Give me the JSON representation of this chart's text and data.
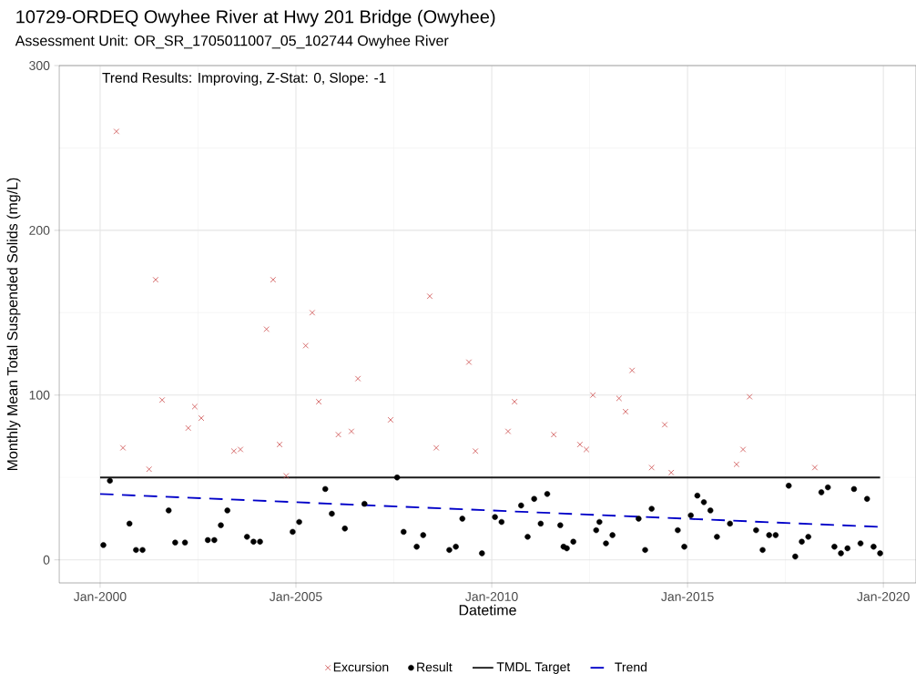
{
  "chart_data": {
    "type": "scatter",
    "title": "10729-ORDEQ Owyhee River at Hwy 201 Bridge (Owyhee)",
    "subtitle": "Assessment Unit: OR_SR_1705011007_05_102744 Owyhee River",
    "xlabel": "Datetime",
    "ylabel": "Monthly Mean Total Suspended Solids (mg/L)",
    "annotations": [
      "Trend Results: Improving, Z-Stat: 0, Slope: -1"
    ],
    "xlim": [
      "1998-12-15",
      "2020-11-01"
    ],
    "ylim": [
      -14,
      300
    ],
    "xticks": [
      {
        "value": "2000-01",
        "label": "Jan-2000"
      },
      {
        "value": "2005-01",
        "label": "Jan-2005"
      },
      {
        "value": "2010-01",
        "label": "Jan-2010"
      },
      {
        "value": "2015-01",
        "label": "Jan-2015"
      },
      {
        "value": "2020-01",
        "label": "Jan-2020"
      }
    ],
    "yticks": [
      0,
      100,
      200,
      300
    ],
    "grid": true,
    "legend": "bottom",
    "series": [
      {
        "name": "Excursion",
        "marker": "cross",
        "color": "#cd4b4b",
        "x": [
          "2000-06",
          "2000-08",
          "2001-04",
          "2001-06",
          "2001-08",
          "2002-04",
          "2002-06",
          "2002-08",
          "2003-06",
          "2003-08",
          "2004-04",
          "2004-06",
          "2004-08",
          "2004-10",
          "2005-04",
          "2005-06",
          "2005-08",
          "2006-02",
          "2006-06",
          "2006-08",
          "2007-06",
          "2008-06",
          "2008-08",
          "2009-06",
          "2009-08",
          "2010-06",
          "2010-08",
          "2011-08",
          "2012-04",
          "2012-06",
          "2012-08",
          "2013-04",
          "2013-06",
          "2013-08",
          "2014-02",
          "2014-06",
          "2014-08",
          "2016-04",
          "2016-06",
          "2016-08",
          "2018-04"
        ],
        "values": [
          260,
          68,
          55,
          170,
          97,
          80,
          93,
          86,
          66,
          67,
          140,
          170,
          70,
          51,
          130,
          150,
          96,
          76,
          78,
          110,
          85,
          160,
          68,
          120,
          66,
          78,
          96,
          76,
          70,
          67,
          100,
          98,
          90,
          115,
          56,
          82,
          53,
          58,
          67,
          99,
          56
        ]
      },
      {
        "name": "Result",
        "marker": "circle",
        "color": "#000000",
        "x": [
          "2000-02",
          "2000-04",
          "2000-10",
          "2000-12",
          "2001-02",
          "2001-10",
          "2001-12",
          "2002-03",
          "2002-10",
          "2002-12",
          "2003-02",
          "2003-04",
          "2003-10",
          "2003-12",
          "2004-02",
          "2004-12",
          "2005-02",
          "2005-10",
          "2005-12",
          "2006-04",
          "2006-10",
          "2007-08",
          "2007-10",
          "2008-02",
          "2008-04",
          "2008-12",
          "2009-02",
          "2009-04",
          "2009-10",
          "2010-02",
          "2010-04",
          "2010-10",
          "2010-12",
          "2011-02",
          "2011-04",
          "2011-06",
          "2011-10",
          "2011-11",
          "2011-12",
          "2012-02",
          "2012-09",
          "2012-10",
          "2012-12",
          "2013-02",
          "2013-10",
          "2013-12",
          "2014-02",
          "2014-10",
          "2014-12",
          "2015-02",
          "2015-04",
          "2015-06",
          "2015-08",
          "2015-10",
          "2016-02",
          "2016-10",
          "2016-12",
          "2017-02",
          "2017-04",
          "2017-08",
          "2017-10",
          "2017-12",
          "2018-02",
          "2018-06",
          "2018-08",
          "2018-10",
          "2018-12",
          "2019-02",
          "2019-04",
          "2019-06",
          "2019-08",
          "2019-10",
          "2019-12"
        ],
        "values": [
          9,
          48,
          22,
          6,
          6,
          30,
          10.5,
          10.5,
          12,
          12,
          21,
          30,
          14,
          11,
          11,
          17,
          23,
          43,
          28,
          19,
          34,
          50,
          17,
          8,
          15,
          6,
          8,
          25,
          4,
          26,
          23,
          33,
          14,
          37,
          22,
          40,
          21,
          8,
          7,
          11,
          18,
          23,
          10,
          15,
          25,
          6,
          31,
          18,
          8,
          27,
          39,
          35,
          30,
          14,
          22,
          18,
          6,
          15,
          15,
          45,
          2,
          11,
          14,
          41,
          44,
          8,
          4,
          7,
          43,
          10,
          37,
          8,
          4
        ]
      },
      {
        "name": "TMDL Target",
        "type": "line",
        "marker": "none",
        "line_style": "solid",
        "color": "#1a1a1a",
        "x": [
          "2000-01",
          "2019-12"
        ],
        "values": [
          50,
          50
        ]
      },
      {
        "name": "Trend",
        "type": "line",
        "marker": "none",
        "line_style": "dashed",
        "color": "#0000c8",
        "x": [
          "2000-01",
          "2019-12"
        ],
        "values": [
          40,
          20
        ]
      }
    ]
  }
}
